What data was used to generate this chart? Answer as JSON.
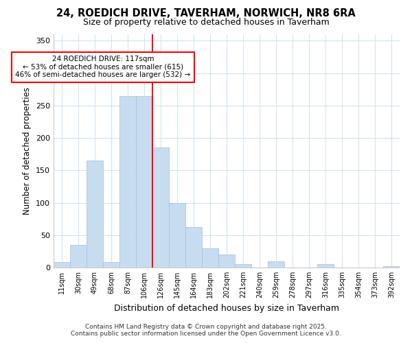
{
  "title1": "24, ROEDICH DRIVE, TAVERHAM, NORWICH, NR8 6RA",
  "title2": "Size of property relative to detached houses in Taverham",
  "xlabel": "Distribution of detached houses by size in Taverham",
  "ylabel": "Number of detached properties",
  "categories": [
    "11sqm",
    "30sqm",
    "49sqm",
    "68sqm",
    "87sqm",
    "106sqm",
    "126sqm",
    "145sqm",
    "164sqm",
    "183sqm",
    "202sqm",
    "221sqm",
    "240sqm",
    "259sqm",
    "278sqm",
    "297sqm",
    "316sqm",
    "335sqm",
    "354sqm",
    "373sqm",
    "392sqm"
  ],
  "values": [
    8,
    35,
    165,
    8,
    265,
    265,
    185,
    100,
    62,
    30,
    20,
    5,
    0,
    10,
    0,
    0,
    5,
    0,
    0,
    0,
    2
  ],
  "bar_color": "#c8dcf0",
  "bar_edge_color": "#a0c0e0",
  "vline_x": 5.5,
  "vline_color": "red",
  "annotation_text": "24 ROEDICH DRIVE: 117sqm\n← 53% of detached houses are smaller (615)\n46% of semi-detached houses are larger (532) →",
  "annotation_box_color": "white",
  "annotation_box_edge": "red",
  "ylim": [
    0,
    360
  ],
  "yticks": [
    0,
    50,
    100,
    150,
    200,
    250,
    300,
    350
  ],
  "footer1": "Contains HM Land Registry data © Crown copyright and database right 2025.",
  "footer2": "Contains public sector information licensed under the Open Government Licence v3.0.",
  "bg_color": "#ffffff",
  "plot_bg_color": "#ffffff",
  "grid_color": "#d0e4f0"
}
